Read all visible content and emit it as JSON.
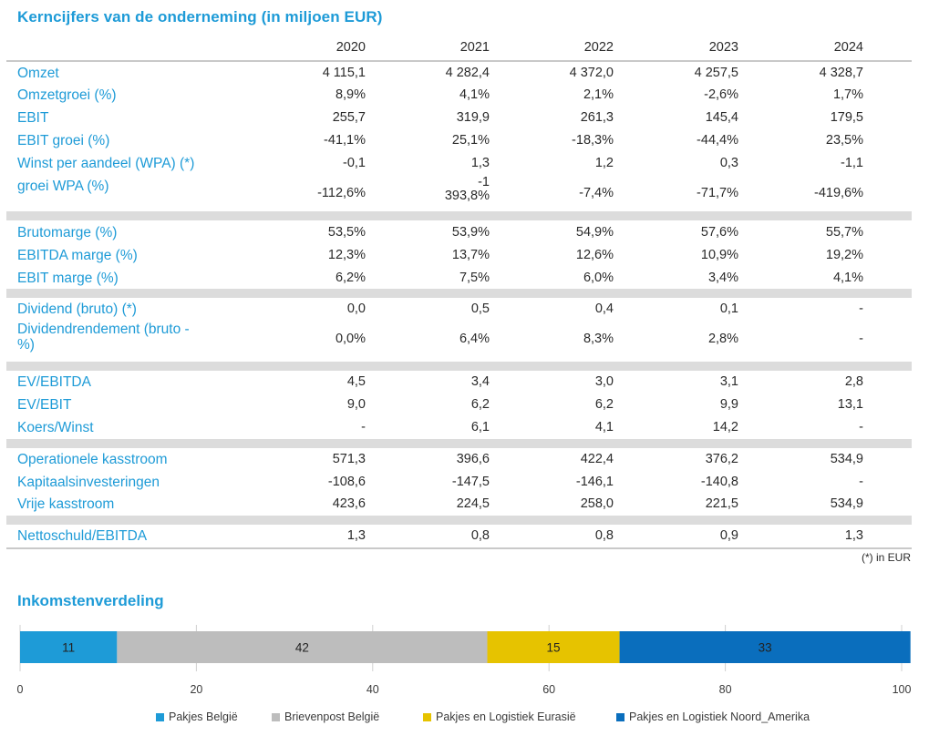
{
  "title": "Kerncijfers van de onderneming (in miljoen EUR)",
  "years": [
    "2020",
    "2021",
    "2022",
    "2023",
    "2024"
  ],
  "rows": [
    {
      "label": "Omzet",
      "values": [
        "4 115,1",
        "4 282,4",
        "4 372,0",
        "4 257,5",
        "4 328,7"
      ]
    },
    {
      "label": "Omzetgroei (%)",
      "values": [
        "8,9%",
        "4,1%",
        "2,1%",
        "-2,6%",
        "1,7%"
      ]
    },
    {
      "label": "EBIT",
      "values": [
        "255,7",
        "319,9",
        "261,3",
        "145,4",
        "179,5"
      ]
    },
    {
      "label": "EBIT groei (%)",
      "values": [
        "-41,1%",
        "25,1%",
        "-18,3%",
        "-44,4%",
        "23,5%"
      ]
    },
    {
      "label": "Winst per aandeel (WPA) (*)",
      "values": [
        "-0,1",
        "1,3",
        "1,2",
        "0,3",
        "-1,1"
      ]
    },
    {
      "label": "groei WPA (%)",
      "values": [
        "-112,6%",
        "-1\n393,8%",
        "-7,4%",
        "-71,7%",
        "-419,6%"
      ]
    },
    {
      "label": "Brutomarge (%)",
      "values": [
        "53,5%",
        "53,9%",
        "54,9%",
        "57,6%",
        "55,7%"
      ]
    },
    {
      "label": "EBITDA marge (%)",
      "values": [
        "12,3%",
        "13,7%",
        "12,6%",
        "10,9%",
        "19,2%"
      ]
    },
    {
      "label": "EBIT marge (%)",
      "values": [
        "6,2%",
        "7,5%",
        "6,0%",
        "3,4%",
        "4,1%"
      ]
    },
    {
      "label": "Dividend (bruto) (*)",
      "values": [
        "0,0",
        "0,5",
        "0,4",
        "0,1",
        "-"
      ]
    },
    {
      "label": "Dividendrendement (bruto -\n%)",
      "values": [
        "0,0%",
        "6,4%",
        "8,3%",
        "2,8%",
        "-"
      ]
    },
    {
      "label": "EV/EBITDA",
      "values": [
        "4,5",
        "3,4",
        "3,0",
        "3,1",
        "2,8"
      ]
    },
    {
      "label": "EV/EBIT",
      "values": [
        "9,0",
        "6,2",
        "6,2",
        "9,9",
        "13,1"
      ]
    },
    {
      "label": "Koers/Winst",
      "values": [
        "-",
        "6,1",
        "4,1",
        "14,2",
        "-"
      ]
    },
    {
      "label": "Operationele kasstroom",
      "values": [
        "571,3",
        "396,6",
        "422,4",
        "376,2",
        "534,9"
      ]
    },
    {
      "label": "Kapitaalsinvesteringen",
      "values": [
        "-108,6",
        "-147,5",
        "-146,1",
        "-140,8",
        "-"
      ]
    },
    {
      "label": "Vrije kasstroom",
      "values": [
        "423,6",
        "224,5",
        "258,0",
        "221,5",
        "534,9"
      ]
    },
    {
      "label": "Nettoschuld/EBITDA",
      "values": [
        "1,3",
        "0,8",
        "0,8",
        "0,9",
        "1,3"
      ]
    }
  ],
  "footnote": "(*) in EUR",
  "subtitle": "Inkomstenverdeling",
  "chart_data": {
    "type": "bar",
    "orientation": "horizontal-stacked",
    "title": "Inkomstenverdeling",
    "categories": [
      ""
    ],
    "series": [
      {
        "name": "Pakjes België",
        "values": [
          11
        ],
        "label": "11",
        "color": "#1e9bd7"
      },
      {
        "name": "Brievenpost België",
        "values": [
          42
        ],
        "label": "42",
        "color": "#bdbdbd"
      },
      {
        "name": "Pakjes en Logistiek Eurasië",
        "values": [
          15
        ],
        "label": "15",
        "color": "#e6c300"
      },
      {
        "name": "Pakjes en Logistiek Noord_Amerika",
        "values": [
          33
        ],
        "label": "33",
        "color": "#0a6ebd"
      }
    ],
    "xlim": [
      0,
      100
    ],
    "xticks": [
      "0",
      "20",
      "40",
      "60",
      "80",
      "100"
    ],
    "grid": true,
    "legend": "bottom"
  }
}
